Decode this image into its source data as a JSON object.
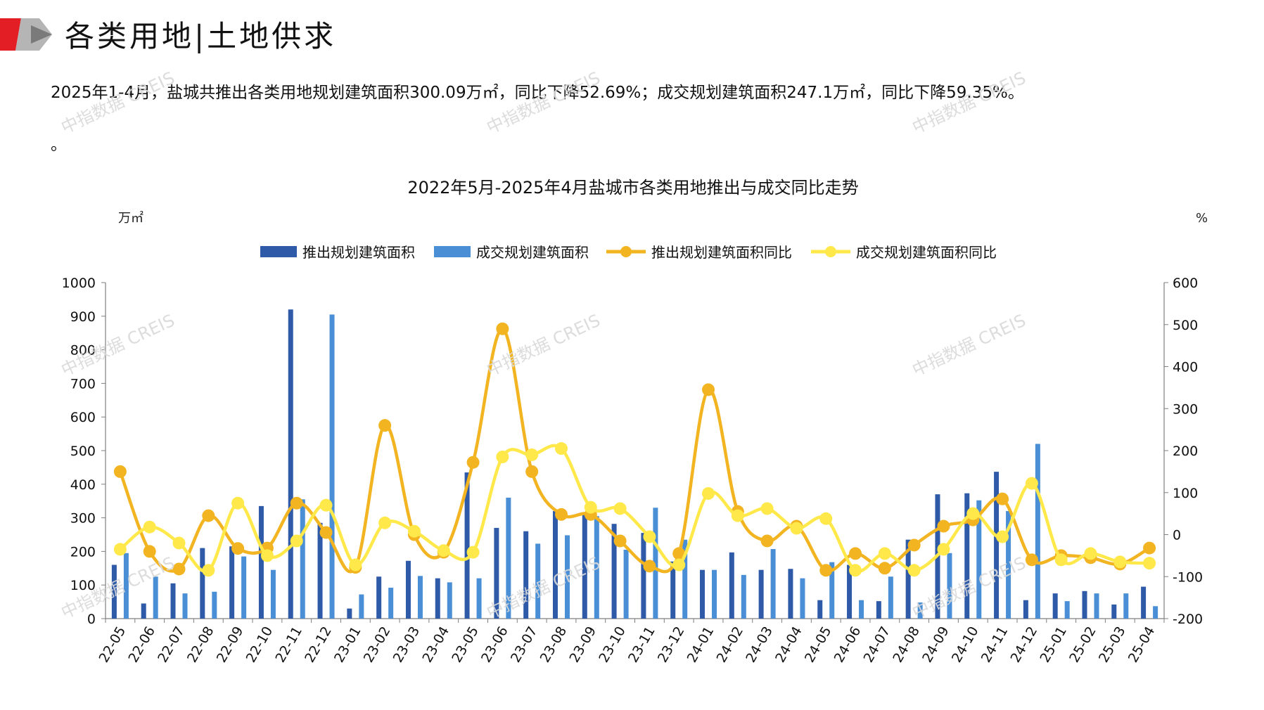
{
  "header": {
    "title": "各类用地|土地供求",
    "summary": "2025年1-4月，盐城共推出各类用地规划建筑面积300.09万㎡，同比下降52.69%；成交规划建筑面积247.1万㎡，同比下降59.35%。",
    "summary_tail": "。"
  },
  "watermark": "中指数据 CREIS",
  "colors": {
    "supply_bar": "#2e5aa8",
    "deal_bar": "#4a8fd6",
    "supply_yoy": "#f2b421",
    "deal_yoy": "#ffe94a",
    "axis": "#7f7f7f",
    "logo_red": "#e31e25",
    "logo_gray": "#9a9a9a"
  },
  "chart_data": {
    "type": "bar",
    "title": "2022年5月-2025年4月盐城市各类用地推出与成交同比走势",
    "y_left_unit": "万㎡",
    "y_right_unit": "%",
    "y_left_range": [
      0,
      1000
    ],
    "y_left_ticks": [
      "0",
      "100",
      "200",
      "300",
      "400",
      "500",
      "600",
      "700",
      "800",
      "900",
      "1000"
    ],
    "y_right_range": [
      -200,
      600
    ],
    "y_right_ticks": [
      "-200",
      "-100",
      "0",
      "100",
      "200",
      "300",
      "400",
      "500",
      "600"
    ],
    "legend_position": "top-center",
    "categories": [
      "22-05",
      "22-06",
      "22-07",
      "22-08",
      "22-09",
      "22-10",
      "22-11",
      "22-12",
      "23-01",
      "23-02",
      "23-03",
      "23-04",
      "23-05",
      "23-06",
      "23-07",
      "23-08",
      "23-09",
      "23-10",
      "23-11",
      "23-12",
      "24-01",
      "24-02",
      "24-03",
      "24-04",
      "24-05",
      "24-06",
      "24-07",
      "24-08",
      "24-09",
      "24-10",
      "24-11",
      "24-12",
      "25-01",
      "25-02",
      "25-03",
      "25-04"
    ],
    "series": [
      {
        "name": "推出规划建筑面积",
        "type": "bar",
        "axis": "left",
        "values": [
          160,
          45,
          105,
          210,
          215,
          335,
          920,
          285,
          30,
          125,
          172,
          120,
          435,
          270,
          260,
          320,
          315,
          282,
          255,
          170,
          145,
          197,
          145,
          148,
          55,
          160,
          52,
          235,
          370,
          373,
          437,
          55,
          75,
          82,
          42,
          95
        ]
      },
      {
        "name": "成交规划建筑面积",
        "type": "bar",
        "axis": "left",
        "values": [
          195,
          125,
          75,
          80,
          185,
          145,
          355,
          905,
          72,
          92,
          127,
          108,
          120,
          360,
          223,
          248,
          305,
          205,
          330,
          235,
          145,
          130,
          207,
          120,
          168,
          55,
          125,
          48,
          195,
          352,
          320,
          520,
          52,
          75,
          75,
          37
        ]
      },
      {
        "name": "推出规划建筑面积同比",
        "type": "line",
        "axis": "right",
        "values": [
          150,
          -40,
          -82,
          45,
          -33,
          -32,
          75,
          5,
          -78,
          260,
          0,
          -42,
          172,
          490,
          150,
          48,
          48,
          -15,
          -75,
          -45,
          345,
          55,
          -15,
          20,
          -85,
          -45,
          -80,
          -25,
          20,
          35,
          85,
          -60,
          -50,
          -55,
          -70,
          -32
        ]
      },
      {
        "name": "成交规划建筑面积同比",
        "type": "line",
        "axis": "right",
        "values": [
          -35,
          18,
          -20,
          -85,
          75,
          -50,
          -15,
          70,
          -72,
          28,
          8,
          -38,
          -42,
          185,
          190,
          205,
          65,
          62,
          -5,
          -72,
          98,
          45,
          62,
          15,
          38,
          -85,
          -45,
          -85,
          -35,
          50,
          -5,
          122,
          -60,
          -45,
          -65,
          -68
        ]
      }
    ]
  }
}
